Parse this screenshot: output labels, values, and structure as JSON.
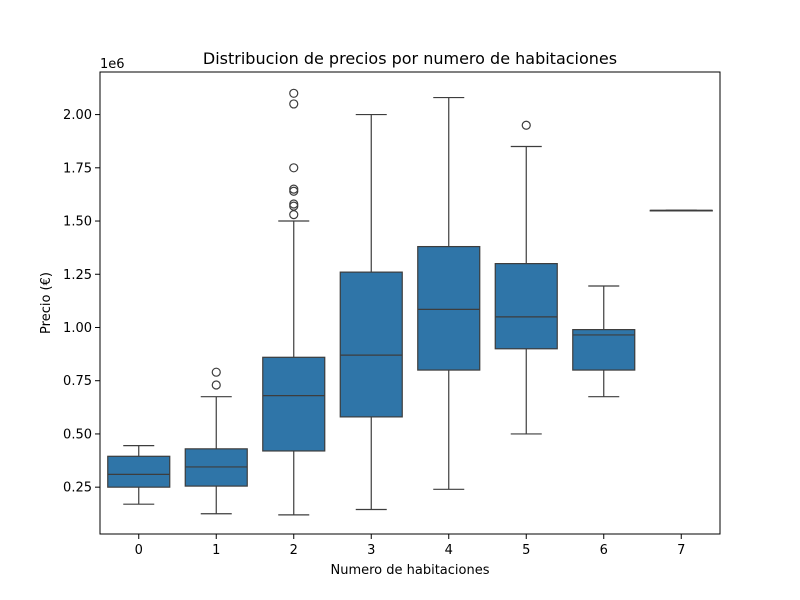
{
  "chart_data": {
    "type": "box",
    "title": "Distribucion de precios por numero de habitaciones",
    "xlabel": "Numero de habitaciones",
    "ylabel": "Precio (€)",
    "y_offset_label": "1e6",
    "y_scale": 1000000,
    "ylim": [
      0.03,
      2.2
    ],
    "yticks": [
      0.25,
      0.5,
      0.75,
      1.0,
      1.25,
      1.5,
      1.75,
      2.0
    ],
    "ytick_labels": [
      "0.25",
      "0.50",
      "0.75",
      "1.00",
      "1.25",
      "1.50",
      "1.75",
      "2.00"
    ],
    "categories": [
      "0",
      "1",
      "2",
      "3",
      "4",
      "5",
      "6",
      "7"
    ],
    "box_color": "#2f75a8",
    "line_color": "#3d3d3d",
    "grid": false,
    "boxes": [
      {
        "category": "0",
        "whislo": 0.17,
        "q1": 0.25,
        "median": 0.31,
        "q3": 0.395,
        "whishi": 0.445,
        "fliers": []
      },
      {
        "category": "1",
        "whislo": 0.125,
        "q1": 0.255,
        "median": 0.345,
        "q3": 0.43,
        "whishi": 0.675,
        "fliers": [
          0.73,
          0.79
        ]
      },
      {
        "category": "2",
        "whislo": 0.12,
        "q1": 0.42,
        "median": 0.68,
        "q3": 0.86,
        "whishi": 1.5,
        "fliers": [
          1.53,
          1.57,
          1.58,
          1.64,
          1.65,
          1.75,
          2.05,
          2.1
        ]
      },
      {
        "category": "3",
        "whislo": 0.145,
        "q1": 0.58,
        "median": 0.87,
        "q3": 1.26,
        "whishi": 2.0,
        "fliers": []
      },
      {
        "category": "4",
        "whislo": 0.24,
        "q1": 0.8,
        "median": 1.085,
        "q3": 1.38,
        "whishi": 2.08,
        "fliers": []
      },
      {
        "category": "5",
        "whislo": 0.5,
        "q1": 0.9,
        "median": 1.05,
        "q3": 1.3,
        "whishi": 1.85,
        "fliers": [
          1.95
        ]
      },
      {
        "category": "6",
        "whislo": 0.675,
        "q1": 0.8,
        "median": 0.965,
        "q3": 0.99,
        "whishi": 1.195,
        "fliers": []
      },
      {
        "category": "7",
        "whislo": 1.55,
        "q1": 1.55,
        "median": 1.55,
        "q3": 1.55,
        "whishi": 1.55,
        "fliers": []
      }
    ]
  }
}
